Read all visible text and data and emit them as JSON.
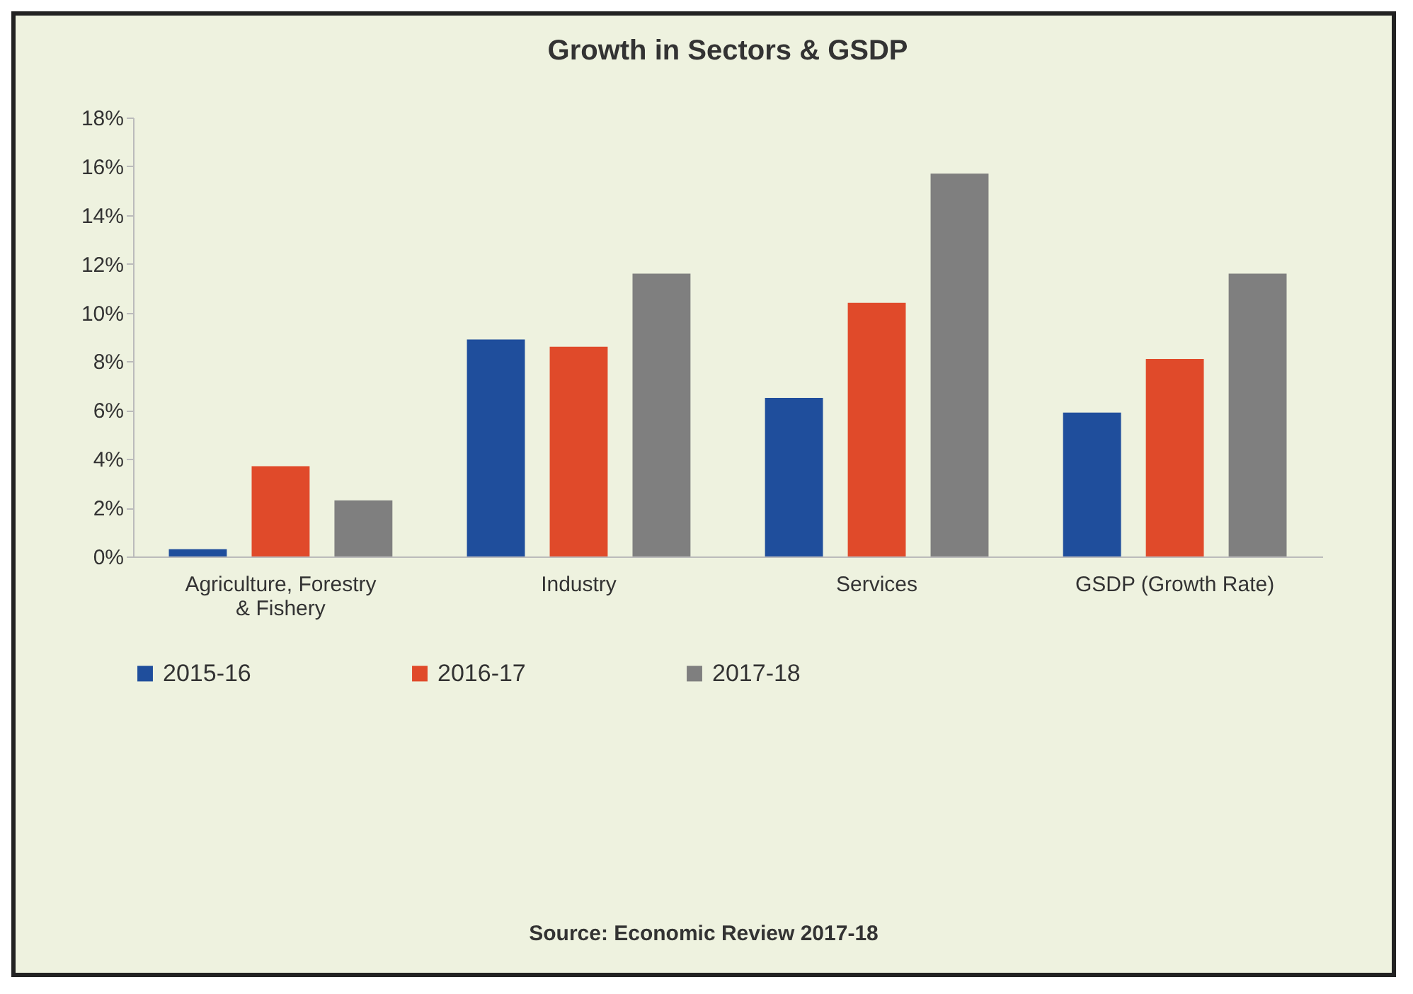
{
  "chart_data": {
    "type": "bar",
    "title": "Growth in Sectors & GSDP",
    "categories": [
      "Agriculture, Forestry & Fishery",
      "Industry",
      "Services",
      "GSDP (Growth Rate)"
    ],
    "series": [
      {
        "name": "2015-16",
        "color": "#1f4e9c",
        "values": [
          0.3,
          8.9,
          6.5,
          5.9
        ]
      },
      {
        "name": "2016-17",
        "color": "#e04a2a",
        "values": [
          3.7,
          8.6,
          10.4,
          8.1
        ]
      },
      {
        "name": "2017-18",
        "color": "#7f7f7f",
        "values": [
          2.3,
          11.6,
          15.7,
          11.6
        ]
      }
    ],
    "ylim": [
      0,
      18
    ],
    "yticks": [
      {
        "value": 0,
        "label": "0%"
      },
      {
        "value": 2,
        "label": "2%"
      },
      {
        "value": 4,
        "label": "4%"
      },
      {
        "value": 6,
        "label": "6%"
      },
      {
        "value": 8,
        "label": "8%"
      },
      {
        "value": 10,
        "label": "10%"
      },
      {
        "value": 12,
        "label": "12%"
      },
      {
        "value": 14,
        "label": "14%"
      },
      {
        "value": 16,
        "label": "16%"
      },
      {
        "value": 18,
        "label": "18%"
      }
    ],
    "grid": false,
    "legend": "bottom",
    "annotations": [
      "Source: Economic Review 2017-18"
    ]
  }
}
